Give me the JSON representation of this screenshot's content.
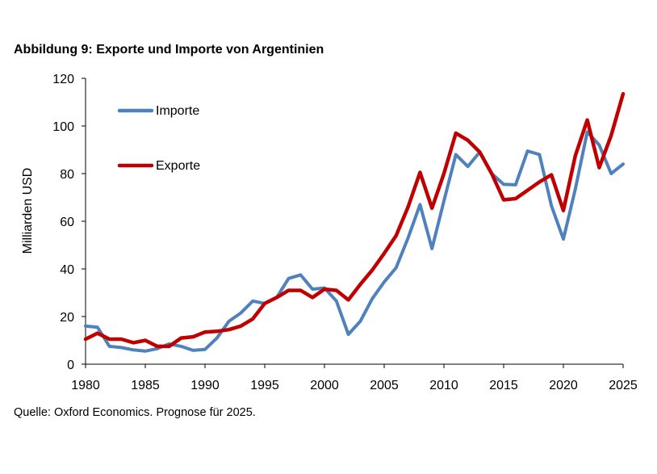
{
  "chart_data": {
    "type": "line",
    "title": "Abbildung 9: Exporte und Importe von Argentinien",
    "source": "Quelle: Oxford Economics. Prognose für 2025.",
    "xlabel": "",
    "ylabel": "Milliarden USD",
    "xlim": [
      1980,
      2025
    ],
    "ylim": [
      0,
      120
    ],
    "xticks": [
      1980,
      1985,
      1990,
      1995,
      2000,
      2005,
      2010,
      2015,
      2020,
      2025
    ],
    "yticks": [
      0,
      20,
      40,
      60,
      80,
      100,
      120
    ],
    "legend_position": "top-left",
    "x": [
      1980,
      1981,
      1982,
      1983,
      1984,
      1985,
      1986,
      1987,
      1988,
      1989,
      1990,
      1991,
      1992,
      1993,
      1994,
      1995,
      1996,
      1997,
      1998,
      1999,
      2000,
      2001,
      2002,
      2003,
      2004,
      2005,
      2006,
      2007,
      2008,
      2009,
      2010,
      2011,
      2012,
      2013,
      2014,
      2015,
      2016,
      2017,
      2018,
      2019,
      2020,
      2021,
      2022,
      2023,
      2024,
      2025
    ],
    "series": [
      {
        "name": "Importe",
        "color": "#4F81BD",
        "values": [
          16.0,
          15.5,
          7.5,
          7.0,
          6.0,
          5.5,
          6.5,
          8.5,
          7.5,
          5.8,
          6.2,
          11.0,
          18.0,
          21.5,
          26.5,
          25.5,
          28.0,
          36.0,
          37.5,
          31.5,
          32.0,
          26.5,
          12.5,
          18.0,
          27.5,
          34.5,
          40.5,
          53.0,
          67.0,
          48.5,
          68.5,
          88.0,
          83.0,
          89.0,
          80.0,
          75.5,
          75.3,
          89.5,
          88.0,
          66.5,
          52.5,
          73.5,
          97.5,
          92.0,
          80.0,
          84.0
        ]
      },
      {
        "name": "Exporte",
        "color": "#C00000",
        "values": [
          10.5,
          13.0,
          10.5,
          10.5,
          9.0,
          10.0,
          7.5,
          7.5,
          11.0,
          11.5,
          13.5,
          13.8,
          14.5,
          16.0,
          19.0,
          25.5,
          28.0,
          31.0,
          31.0,
          28.0,
          31.5,
          31.0,
          27.0,
          33.5,
          39.5,
          46.5,
          54.0,
          66.0,
          80.5,
          65.5,
          80.0,
          97.0,
          94.0,
          89.0,
          80.0,
          69.0,
          69.5,
          73.0,
          76.5,
          79.5,
          64.5,
          87.5,
          102.5,
          82.5,
          96.0,
          113.5
        ]
      }
    ]
  }
}
